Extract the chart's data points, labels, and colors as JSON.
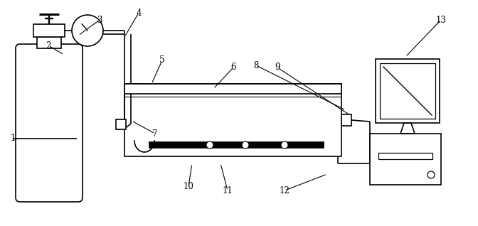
{
  "bg_color": "#ffffff",
  "line_color": "#000000",
  "lw": 1.2,
  "fig_width": 6.72,
  "fig_height": 3.18,
  "dpi": 100
}
